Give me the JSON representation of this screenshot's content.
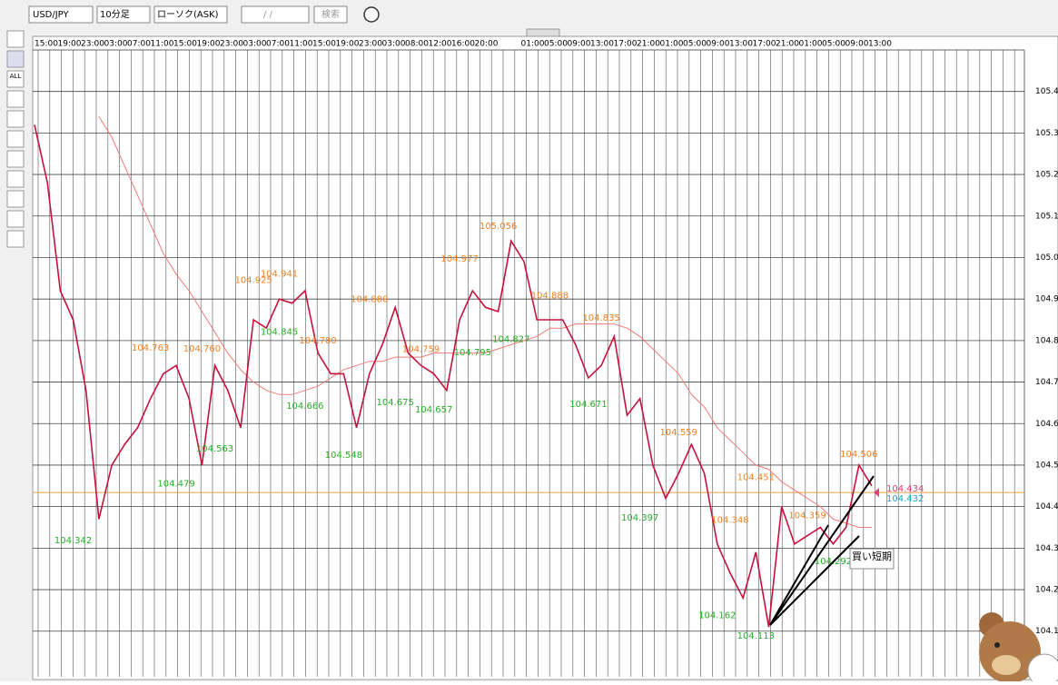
{
  "toolbar": {
    "symbol": "USD/JPY",
    "timeframe": "10分足",
    "chart_type": "ローソク(ASK)",
    "date": "/ /",
    "search": "検索",
    "tool_all": "ALL"
  },
  "chart_data": {
    "type": "line",
    "time_labels": [
      "15:00",
      "19:00",
      "23:00",
      "03:00",
      "07:00",
      "11:00",
      "15:00",
      "19:00",
      "23:00",
      "03:00",
      "07:00",
      "11:00",
      "15:00",
      "19:00",
      "23:00",
      "03:00",
      "08:00",
      "12:00",
      "16:00",
      "20:00",
      null,
      "01:00",
      "05:00",
      "09:00",
      "13:00",
      "17:00",
      "21:00",
      "01:00",
      "05:00",
      "09:00",
      "13:00",
      "17:00",
      "21:00",
      "01:00",
      "05:00",
      "09:00",
      "13:00"
    ],
    "series": [
      {
        "color": "#c8103c",
        "values": [
          105.32,
          105.18,
          104.92,
          104.85,
          104.68,
          104.37,
          104.5,
          104.55,
          104.59,
          104.66,
          104.72,
          104.74,
          104.66,
          104.5,
          104.74,
          104.68,
          104.59,
          104.85,
          104.83,
          104.9,
          104.89,
          104.92,
          104.77,
          104.72,
          104.72,
          104.59,
          104.72,
          104.79,
          104.88,
          104.77,
          104.74,
          104.72,
          104.68,
          104.85,
          104.92,
          104.88,
          104.87,
          105.04,
          104.99,
          104.85,
          104.85,
          104.85,
          104.79,
          104.71,
          104.74,
          104.81,
          104.62,
          104.66,
          104.5,
          104.42,
          104.48,
          104.55,
          104.48,
          104.31,
          104.24,
          104.18,
          104.29,
          104.11,
          104.4,
          104.31,
          104.33,
          104.35,
          104.31,
          104.35,
          104.5,
          104.45
        ]
      },
      {
        "color": "#f07a7a",
        "values": [
          null,
          null,
          null,
          null,
          null,
          105.34,
          105.29,
          105.22,
          105.15,
          105.08,
          105.01,
          104.96,
          104.92,
          104.87,
          104.82,
          104.77,
          104.73,
          104.7,
          104.68,
          104.67,
          104.67,
          104.68,
          104.69,
          104.71,
          104.73,
          104.74,
          104.75,
          104.75,
          104.76,
          104.76,
          104.76,
          104.77,
          104.77,
          104.77,
          104.77,
          104.77,
          104.78,
          104.79,
          104.8,
          104.81,
          104.83,
          104.83,
          104.84,
          104.84,
          104.84,
          104.84,
          104.83,
          104.81,
          104.78,
          104.75,
          104.72,
          104.67,
          104.64,
          104.59,
          104.56,
          104.53,
          104.5,
          104.49,
          104.46,
          104.44,
          104.42,
          104.4,
          104.37,
          104.36,
          104.35,
          104.35
        ]
      }
    ],
    "high_labels": {
      "color": "#f08020",
      "items": [
        {
          "value": 104.941,
          "label": "104.941",
          "at": 19
        },
        {
          "value": 104.925,
          "label": "104.925",
          "at": 17
        },
        {
          "value": 104.763,
          "label": "104.763",
          "at": 9
        },
        {
          "value": 104.76,
          "label": "104.760",
          "at": 13
        },
        {
          "value": 104.88,
          "label": "104.880",
          "at": 26
        },
        {
          "value": 104.78,
          "label": "104.780",
          "at": 22
        },
        {
          "value": 104.759,
          "label": "104.759",
          "at": 30
        },
        {
          "value": 104.977,
          "label": "104.977",
          "at": 33
        },
        {
          "value": 105.056,
          "label": "105.056",
          "at": 36
        },
        {
          "value": 104.888,
          "label": "104.888",
          "at": 40
        },
        {
          "value": 104.835,
          "label": "104.835",
          "at": 44
        },
        {
          "value": 104.559,
          "label": "104.559",
          "at": 50
        },
        {
          "value": 104.451,
          "label": "104.451",
          "at": 56
        },
        {
          "value": 104.348,
          "label": "104.348",
          "at": 54
        },
        {
          "value": 104.359,
          "label": "104.359",
          "at": 60
        },
        {
          "value": 104.506,
          "label": "104.506",
          "at": 64
        }
      ]
    },
    "low_labels": {
      "color": "#22b022",
      "items": [
        {
          "value": 104.342,
          "label": "104.342",
          "at": 3
        },
        {
          "value": 104.479,
          "label": "104.479",
          "at": 11
        },
        {
          "value": 104.563,
          "label": "104.563",
          "at": 14
        },
        {
          "value": 104.845,
          "label": "104.845",
          "at": 19
        },
        {
          "value": 104.666,
          "label": "104.666",
          "at": 21
        },
        {
          "value": 104.548,
          "label": "104.548",
          "at": 24
        },
        {
          "value": 104.675,
          "label": "104.675",
          "at": 28
        },
        {
          "value": 104.657,
          "label": "104.657",
          "at": 31
        },
        {
          "value": 104.795,
          "label": "104.795",
          "at": 34
        },
        {
          "value": 104.827,
          "label": "104.827",
          "at": 37
        },
        {
          "value": 104.671,
          "label": "104.671",
          "at": 43
        },
        {
          "value": 104.397,
          "label": "104.397",
          "at": 47
        },
        {
          "value": 104.162,
          "label": "104.162",
          "at": 53
        },
        {
          "value": 104.113,
          "label": "104.113",
          "at": 56
        },
        {
          "value": 104.292,
          "label": "104.292",
          "at": 62
        }
      ]
    },
    "price_lines": [
      {
        "value": 104.434,
        "label": "104.434",
        "color": "#e0407a"
      },
      {
        "value": 104.432,
        "label": "104.432",
        "color": "#20a8c8"
      }
    ],
    "drawing_label": "買い短期",
    "ylim": [
      103.99,
      105.5
    ],
    "yticks": [
      {
        "value": 104.1,
        "label": "104.10"
      },
      {
        "value": 104.2,
        "label": "104.20"
      },
      {
        "value": 104.3,
        "label": "104.30"
      },
      {
        "value": 104.4,
        "label": "104.40"
      },
      {
        "value": 104.5,
        "label": "104.50"
      },
      {
        "value": 104.6,
        "label": "104.60"
      },
      {
        "value": 104.7,
        "label": "104.70"
      },
      {
        "value": 104.8,
        "label": "104.80"
      },
      {
        "value": 104.9,
        "label": "104.90"
      },
      {
        "value": 105.0,
        "label": "105.00"
      },
      {
        "value": 105.1,
        "label": "105.10"
      },
      {
        "value": 105.2,
        "label": "105.20"
      },
      {
        "value": 105.3,
        "label": "105.30"
      },
      {
        "value": 105.4,
        "label": "105.40"
      }
    ],
    "grid": true
  }
}
